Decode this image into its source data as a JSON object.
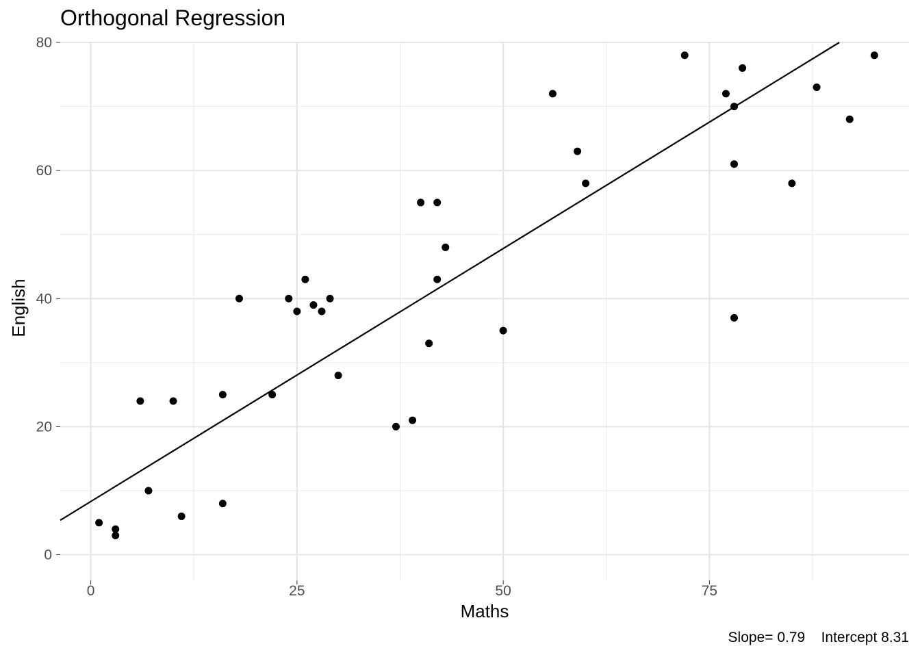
{
  "chart_data": {
    "type": "scatter",
    "title": "Orthogonal Regression",
    "xlabel": "Maths",
    "ylabel": "English",
    "caption": "Slope= 0.79    Intercept 8.31",
    "xlim": [
      -3.7,
      99.2
    ],
    "ylim": [
      -4.0,
      80.0
    ],
    "x_ticks": [
      0,
      25,
      50,
      75
    ],
    "y_ticks": [
      0,
      20,
      40,
      60,
      80
    ],
    "grid": true,
    "fit_line": {
      "slope": 0.79,
      "intercept": 8.31
    },
    "points": [
      {
        "x": 1,
        "y": 5
      },
      {
        "x": 3,
        "y": 4
      },
      {
        "x": 3,
        "y": 3
      },
      {
        "x": 6,
        "y": 24
      },
      {
        "x": 7,
        "y": 10
      },
      {
        "x": 10,
        "y": 24
      },
      {
        "x": 11,
        "y": 6
      },
      {
        "x": 16,
        "y": 25
      },
      {
        "x": 16,
        "y": 8
      },
      {
        "x": 18,
        "y": 40
      },
      {
        "x": 22,
        "y": 25
      },
      {
        "x": 24,
        "y": 40
      },
      {
        "x": 25,
        "y": 38
      },
      {
        "x": 26,
        "y": 43
      },
      {
        "x": 27,
        "y": 39
      },
      {
        "x": 28,
        "y": 38
      },
      {
        "x": 29,
        "y": 40
      },
      {
        "x": 30,
        "y": 28
      },
      {
        "x": 37,
        "y": 20
      },
      {
        "x": 39,
        "y": 21
      },
      {
        "x": 40,
        "y": 55
      },
      {
        "x": 41,
        "y": 33
      },
      {
        "x": 42,
        "y": 55
      },
      {
        "x": 42,
        "y": 43
      },
      {
        "x": 43,
        "y": 48
      },
      {
        "x": 50,
        "y": 35
      },
      {
        "x": 56,
        "y": 72
      },
      {
        "x": 59,
        "y": 63
      },
      {
        "x": 60,
        "y": 58
      },
      {
        "x": 72,
        "y": 78
      },
      {
        "x": 77,
        "y": 72
      },
      {
        "x": 78,
        "y": 70
      },
      {
        "x": 78,
        "y": 61
      },
      {
        "x": 78,
        "y": 37
      },
      {
        "x": 79,
        "y": 76
      },
      {
        "x": 85,
        "y": 58
      },
      {
        "x": 88,
        "y": 73
      },
      {
        "x": 92,
        "y": 68
      },
      {
        "x": 95,
        "y": 78
      }
    ]
  }
}
